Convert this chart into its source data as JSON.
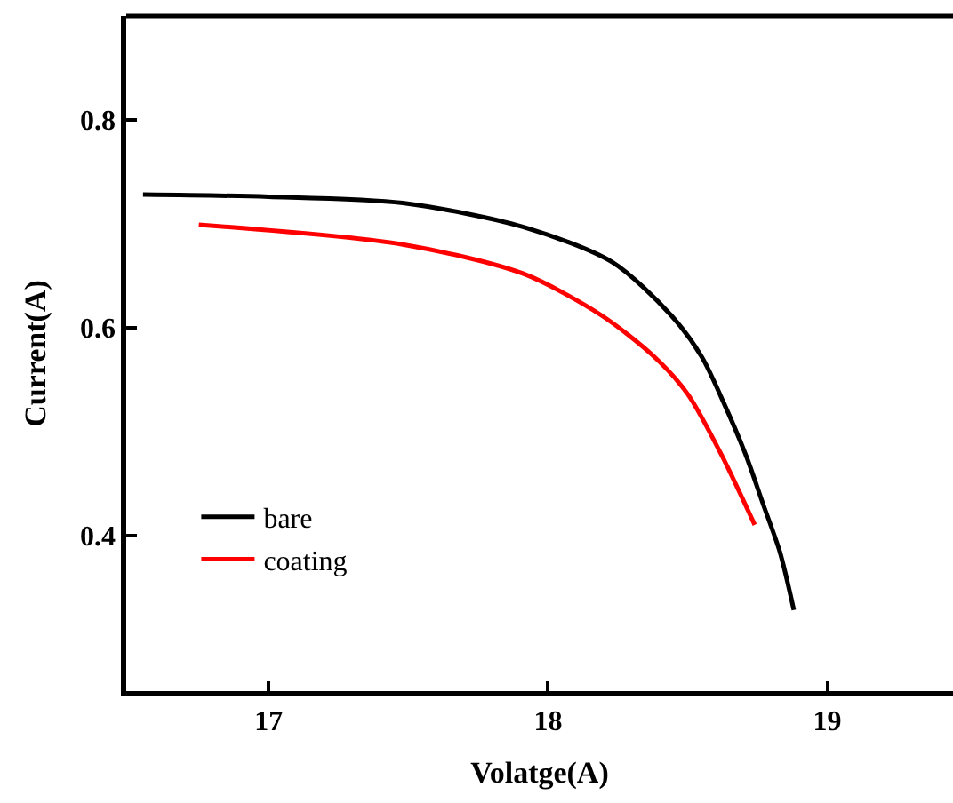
{
  "chart_data": {
    "type": "line",
    "xlabel": "Volatge(A)",
    "ylabel": "Current(A)",
    "xlim": [
      16.49,
      19.45
    ],
    "xticks": [
      17,
      18,
      19
    ],
    "ylim": [
      0.25,
      0.9
    ],
    "yticks": [
      0.4,
      0.6,
      0.8
    ],
    "legend": "bottom left",
    "marker": "none",
    "line_style": "solid",
    "series": [
      {
        "name": "bare",
        "color": "#000000",
        "x": [
          16.55,
          17.0,
          17.48,
          17.91,
          18.23,
          18.44,
          18.55,
          18.63,
          18.71,
          18.77,
          18.83,
          18.88
        ],
        "values": [
          0.728,
          0.726,
          0.72,
          0.697,
          0.663,
          0.612,
          0.572,
          0.527,
          0.476,
          0.43,
          0.384,
          0.328
        ]
      },
      {
        "name": "coating",
        "color": "#ff0000",
        "x": [
          16.75,
          17.48,
          17.91,
          18.19,
          18.38,
          18.5,
          18.62,
          18.74
        ],
        "values": [
          0.699,
          0.68,
          0.652,
          0.612,
          0.572,
          0.536,
          0.478,
          0.41
        ]
      }
    ]
  }
}
